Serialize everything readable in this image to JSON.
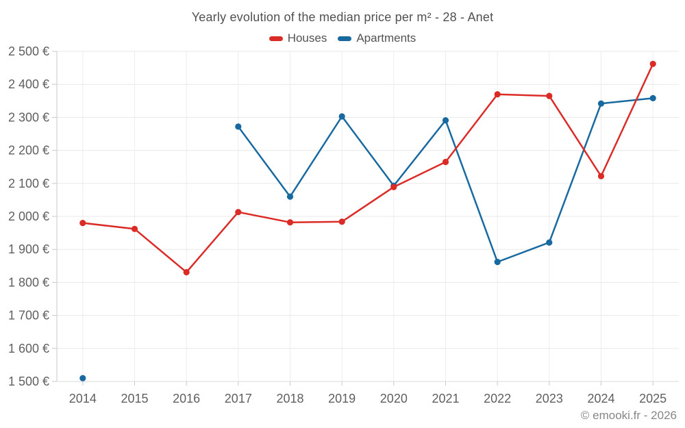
{
  "header": {
    "title": "Yearly evolution of the median price per m² - 28 - Anet"
  },
  "footer": {
    "credit": "© emooki.fr - 2026"
  },
  "chart_data": {
    "type": "line",
    "title": "Yearly evolution of the median price per m² - 28 - Anet",
    "categories": [
      "2014",
      "2015",
      "2016",
      "2017",
      "2018",
      "2019",
      "2020",
      "2021",
      "2022",
      "2023",
      "2024",
      "2025"
    ],
    "series": [
      {
        "name": "Houses",
        "color": "#db2b26",
        "values": [
          1980,
          1962,
          1831,
          2013,
          1982,
          1984,
          2089,
          2165,
          2370,
          2365,
          2122,
          2462
        ]
      },
      {
        "name": "Apartments",
        "color": "#1769a0",
        "values": [
          1510,
          null,
          null,
          2272,
          2060,
          2303,
          2093,
          2291,
          1862,
          1921,
          2342,
          2358
        ]
      }
    ],
    "ylim": [
      1500,
      2500
    ],
    "y_ticks": [
      1500,
      1600,
      1700,
      1800,
      1900,
      2000,
      2100,
      2200,
      2300,
      2400,
      2500
    ],
    "y_tick_labels": [
      "1 500 €",
      "1 600 €",
      "1 700 €",
      "1 800 €",
      "1 900 €",
      "2 000 €",
      "2 100 €",
      "2 200 €",
      "2 300 €",
      "2 400 €",
      "2 500 €"
    ],
    "xlabel": "",
    "ylabel": "",
    "grid": true,
    "legend_position": "top",
    "style": {
      "grid_color": "#e8e8e8",
      "vgrid_color": "#ededed",
      "axis_line_color": "#c8c8c8",
      "tick_color": "#c8c8c8",
      "baseline_color": "#d8d8d8",
      "axis_label_color": "#5f5f5f",
      "marker_radius": 4.6,
      "line_width": 2.5
    }
  }
}
